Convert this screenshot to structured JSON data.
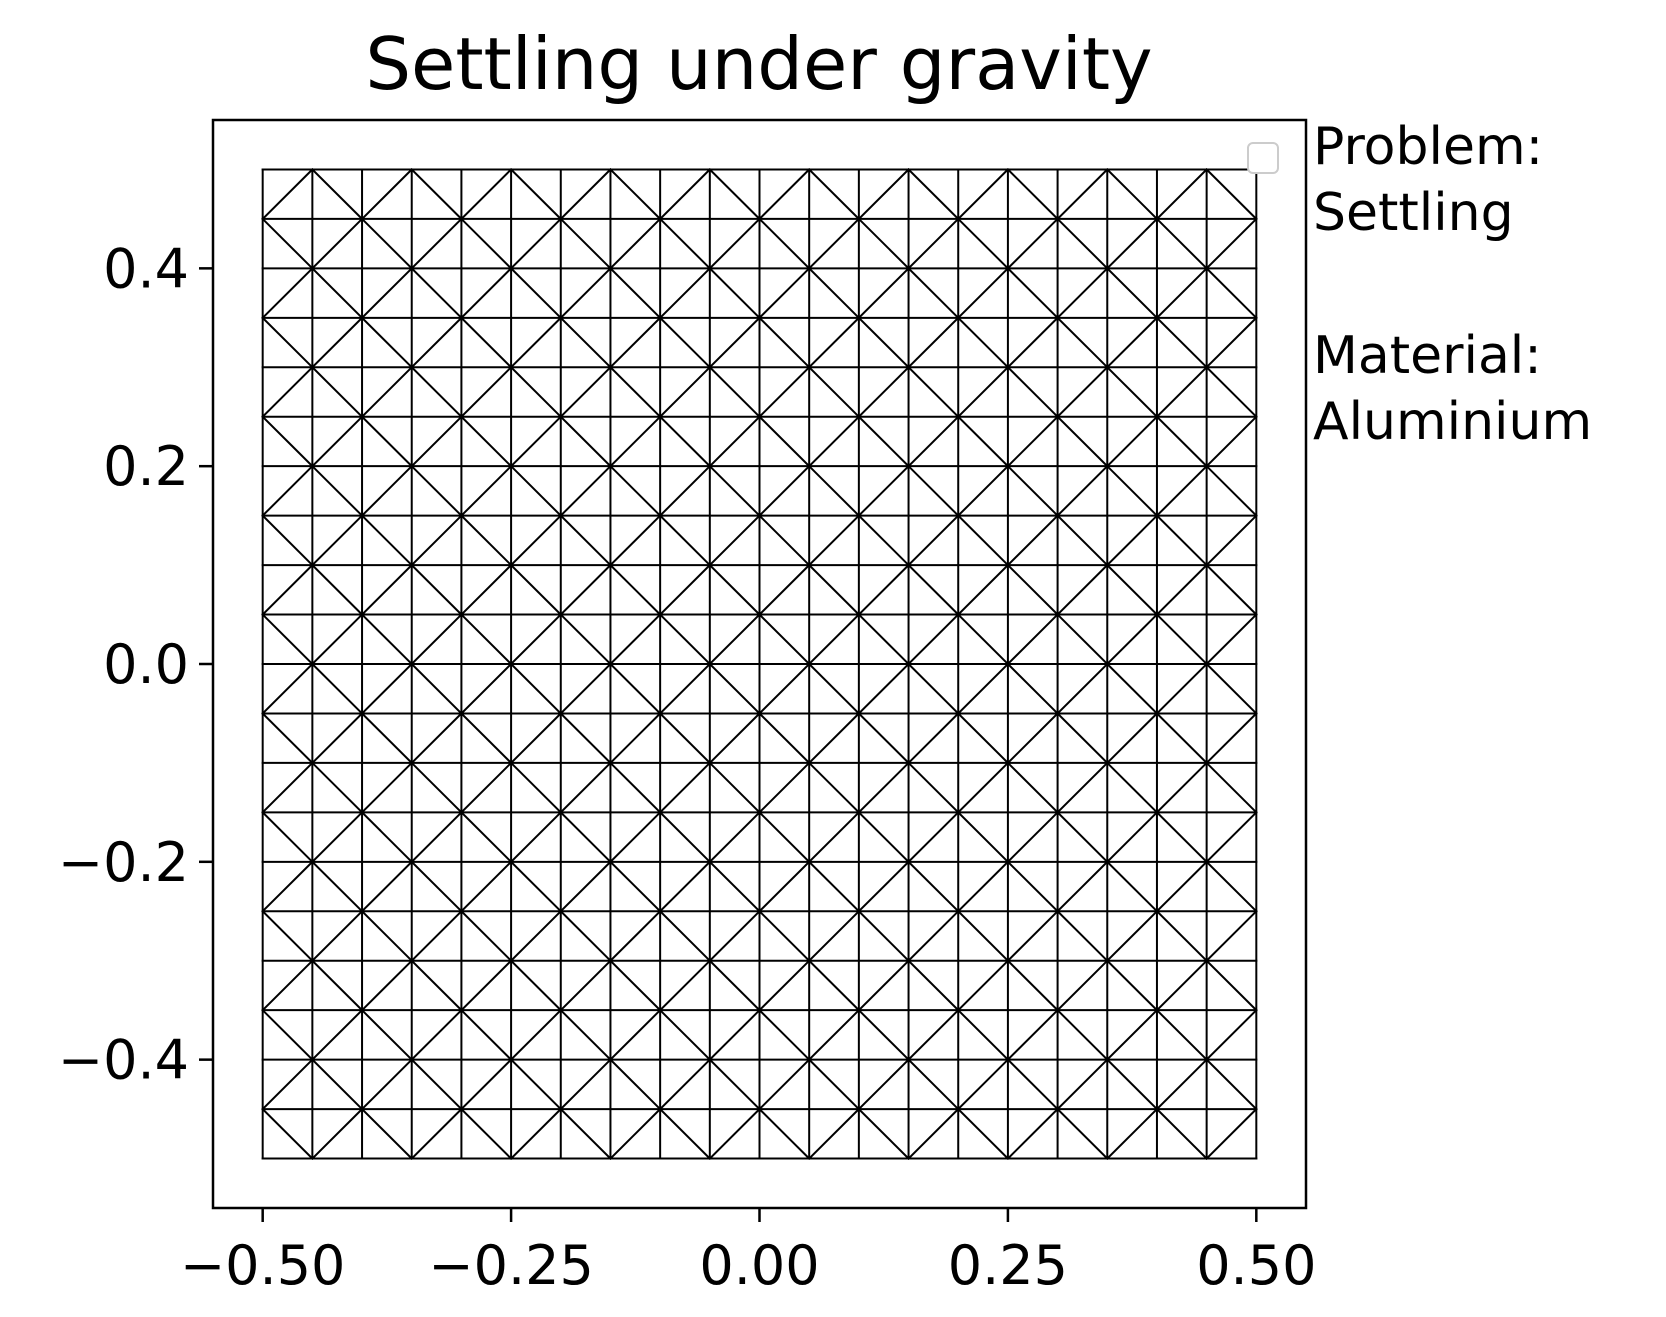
{
  "chart_data": {
    "type": "mesh",
    "title": "Settling under gravity",
    "xlabel": "",
    "ylabel": "",
    "xlim": [
      -0.55,
      0.55
    ],
    "ylim": [
      -0.55,
      0.55
    ],
    "grid": false,
    "legend": {
      "placement": "upper-right",
      "entries": []
    },
    "x_ticks": [
      {
        "value": -0.5,
        "label": "−0.50"
      },
      {
        "value": -0.25,
        "label": "−0.25"
      },
      {
        "value": 0.0,
        "label": "0.00"
      },
      {
        "value": 0.25,
        "label": "0.25"
      },
      {
        "value": 0.5,
        "label": "0.50"
      }
    ],
    "y_ticks": [
      {
        "value": -0.4,
        "label": "−0.4"
      },
      {
        "value": -0.2,
        "label": "−0.2"
      },
      {
        "value": 0.0,
        "label": "0.0"
      },
      {
        "value": 0.2,
        "label": "0.2"
      },
      {
        "value": 0.4,
        "label": "0.4"
      }
    ],
    "mesh": {
      "domain_x": [
        -0.5,
        0.5
      ],
      "domain_y": [
        -0.5,
        0.5
      ],
      "cells_x": 20,
      "cells_y": 20,
      "pattern": "union-jack",
      "line_color": "#000000"
    },
    "side_text": {
      "problem_label": "Problem:",
      "problem_value": "Settling",
      "material_label": "Material:",
      "material_value": "Aluminium"
    }
  }
}
